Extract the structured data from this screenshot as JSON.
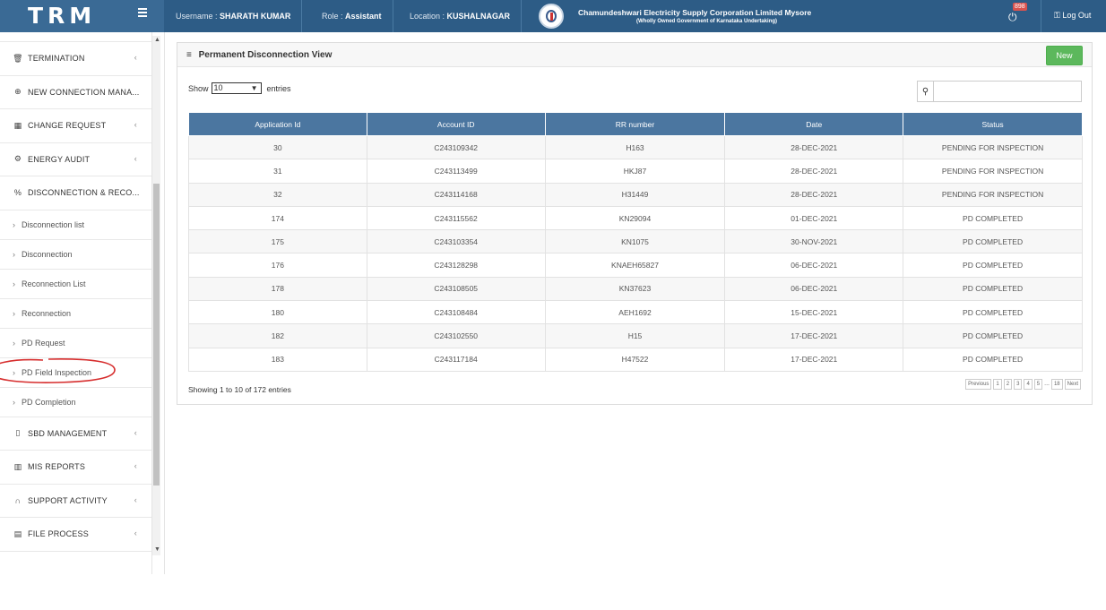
{
  "brand": "TRM",
  "header": {
    "username_label": "Username :",
    "username": "SHARATH KUMAR",
    "role_label": "Role :",
    "role": "Assistant",
    "location_label": "Location :",
    "location": "KUSHALNAGAR",
    "org_title": "Chamundeshwari Electricity Supply Corporation Limited Mysore",
    "org_subtitle": "(Wholly Owned Government of Karnataka Undertaking)",
    "notification_count": "898",
    "logout_label": "Log Out"
  },
  "sidebar": {
    "items": [
      {
        "label": "TERMINATION",
        "icon": "bin-icon"
      },
      {
        "label": "NEW CONNECTION MANA...",
        "icon": "plus-circle-icon"
      },
      {
        "label": "CHANGE REQUEST",
        "icon": "list-icon"
      },
      {
        "label": "ENERGY AUDIT",
        "icon": "gears-icon"
      },
      {
        "label": "DISCONNECTION & RECO...",
        "icon": "unlink-icon"
      }
    ],
    "subitems": [
      "Disconnection list",
      "Disconnection",
      "Reconnection List",
      "Reconnection",
      "PD Request",
      "PD Field Inspection",
      "PD Completion"
    ],
    "items_after": [
      {
        "label": "SBD MANAGEMENT",
        "icon": "file-icon"
      },
      {
        "label": "MIS REPORTS",
        "icon": "report-icon"
      },
      {
        "label": "SUPPORT ACTIVITY",
        "icon": "headset-icon"
      },
      {
        "label": "FILE PROCESS",
        "icon": "document-icon"
      }
    ]
  },
  "panel": {
    "title": "Permanent Disconnection View",
    "new_button": "New",
    "show_label": "Show",
    "entries_value": "10",
    "entries_label": "entries",
    "search_value": "",
    "columns": [
      "Application Id",
      "Account ID",
      "RR number",
      "Date",
      "Status"
    ],
    "rows": [
      [
        "30",
        "C243109342",
        "H163",
        "28-DEC-2021",
        "PENDING FOR INSPECTION"
      ],
      [
        "31",
        "C243113499",
        "HKJ87",
        "28-DEC-2021",
        "PENDING FOR INSPECTION"
      ],
      [
        "32",
        "C243114168",
        "H31449",
        "28-DEC-2021",
        "PENDING FOR INSPECTION"
      ],
      [
        "174",
        "C243115562",
        "KN29094",
        "01-DEC-2021",
        "PD COMPLETED"
      ],
      [
        "175",
        "C243103354",
        "KN1075",
        "30-NOV-2021",
        "PD COMPLETED"
      ],
      [
        "176",
        "C243128298",
        "KNAEH65827",
        "06-DEC-2021",
        "PD COMPLETED"
      ],
      [
        "178",
        "C243108505",
        "KN37623",
        "06-DEC-2021",
        "PD COMPLETED"
      ],
      [
        "180",
        "C243108484",
        "AEH1692",
        "15-DEC-2021",
        "PD COMPLETED"
      ],
      [
        "182",
        "C243102550",
        "H15",
        "17-DEC-2021",
        "PD COMPLETED"
      ],
      [
        "183",
        "C243117184",
        "H47522",
        "17-DEC-2021",
        "PD COMPLETED"
      ]
    ],
    "showing_text": "Showing 1 to 10 of 172 entries",
    "pagination": {
      "previous": "Previous",
      "pages": [
        "1",
        "2",
        "3",
        "4",
        "5"
      ],
      "ellipsis": "...",
      "last": "18",
      "next": "Next"
    }
  },
  "colors": {
    "header_bg": "#2d5c86",
    "table_header_bg": "#4b76a0",
    "new_button_bg": "#5cb85c",
    "annotation": "#d62c2c"
  }
}
